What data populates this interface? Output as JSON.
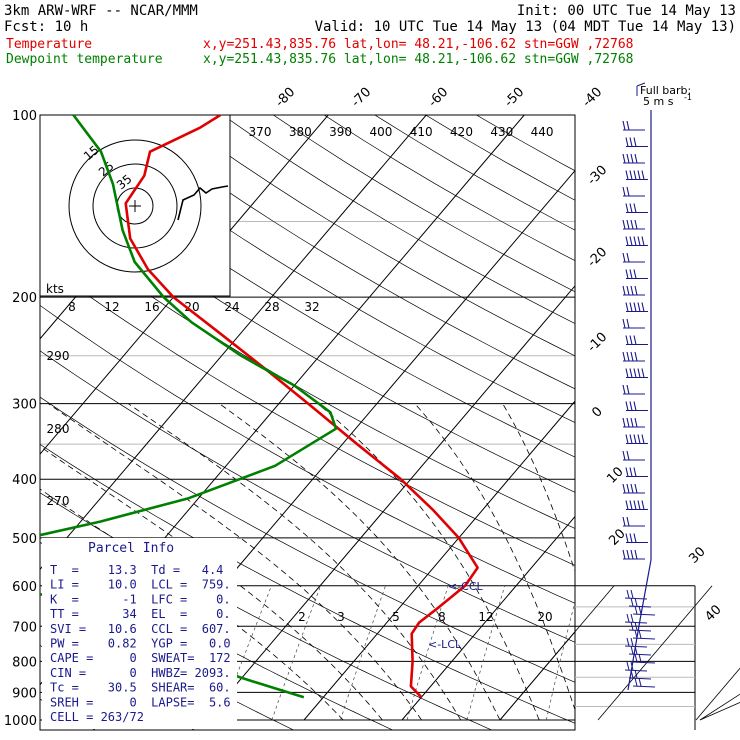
{
  "header": {
    "model": "3km ARW-WRF -- NCAR/MMM",
    "init": "Init: 00 UTC Tue 14 May 13",
    "fcst": "Fcst:    10 h",
    "valid": "Valid: 10 UTC Tue 14 May 13 (04 MDT Tue 14 May 13)",
    "temp_label": "Temperature",
    "dew_label": "Dewpoint temperature",
    "temp_info": "x,y=251.43,835.76   lat,lon= 48.21,-106.62   stn=GGW ,72768",
    "dew_info": "x,y=251.43,835.76   lat,lon= 48.21,-106.62   stn=GGW ,72768"
  },
  "colors": {
    "temperature": "#e00000",
    "dewpoint": "#008000",
    "parcel": "#1a1a8c"
  },
  "wind_key": {
    "title": "Full barb:",
    "value": "5 m s",
    "sup": "-1"
  },
  "hodograph": {
    "ring_labels": [
      "15",
      "25",
      "35"
    ],
    "units": "kts"
  },
  "parcel_info": {
    "title": "Parcel Info",
    "rows": [
      "T  =    13.3  Td =   4.4",
      "LI =    10.0  LCL =  759.",
      "K  =      -1  LFC =    0.",
      "TT =      34  EL  =    0.",
      "SVI =   10.6  CCL =  607.",
      "PW =    0.82  YGP =   0.0",
      "CAPE =     0  SWEAT=  172",
      "CIN =      0  HWBZ= 2093.",
      "Tc =    30.5  SHEAR=  60.",
      "SREH =     0  LAPSE=  5.6",
      "CELL = 263/72"
    ]
  },
  "annotations": {
    "ccl": "<-CCL",
    "lcl": "<-LCL"
  },
  "chart_data": {
    "type": "line",
    "ylabel": "",
    "yscale": "log-pressure",
    "pressure_ticks": [
      100,
      200,
      300,
      400,
      500,
      600,
      700,
      800,
      900,
      1000
    ],
    "isotherm_labels": [
      -80,
      -70,
      -60,
      -50,
      -40,
      -30,
      -20,
      -10,
      0,
      10,
      20,
      30,
      40
    ],
    "theta_labels": [
      370,
      380,
      390,
      400,
      410,
      420,
      430,
      440
    ],
    "wind_scale_labels": [
      8,
      12,
      16,
      20,
      24,
      28,
      32
    ],
    "theta_labels_left": [
      290,
      280,
      270
    ],
    "mixing_ratio_labels": [
      2,
      3,
      5,
      8,
      12,
      20
    ],
    "series": [
      {
        "name": "Temperature",
        "points": [
          [
            917,
            10
          ],
          [
            880,
            8
          ],
          [
            800,
            6
          ],
          [
            720,
            3.5
          ],
          [
            690,
            3.3
          ],
          [
            650,
            4
          ],
          [
            600,
            4.8
          ],
          [
            560,
            4.5
          ],
          [
            500,
            0
          ],
          [
            450,
            -5
          ],
          [
            400,
            -11
          ],
          [
            350,
            -18.5
          ],
          [
            300,
            -27
          ],
          [
            260,
            -35
          ],
          [
            230,
            -42
          ],
          [
            200,
            -50
          ],
          [
            180,
            -55
          ],
          [
            160,
            -59.5
          ],
          [
            140,
            -63
          ],
          [
            126,
            -63.5
          ],
          [
            115,
            -65
          ],
          [
            105,
            -62
          ],
          [
            100,
            -61
          ]
        ]
      },
      {
        "name": "Dewpoint temperature",
        "points": [
          [
            917,
            -2
          ],
          [
            860,
            -9
          ],
          [
            820,
            -14
          ],
          [
            780,
            -17
          ],
          [
            720,
            -24
          ],
          [
            650,
            -33
          ],
          [
            600,
            -41
          ],
          [
            560,
            -47
          ],
          [
            520,
            -48
          ],
          [
            500,
            -44
          ],
          [
            470,
            -38
          ],
          [
            430,
            -31
          ],
          [
            380,
            -25
          ],
          [
            330,
            -22
          ],
          [
            310,
            -24
          ],
          [
            280,
            -30
          ],
          [
            250,
            -38
          ],
          [
            220,
            -46
          ],
          [
            200,
            -51
          ],
          [
            175,
            -57
          ],
          [
            155,
            -61
          ],
          [
            130,
            -66
          ],
          [
            115,
            -70
          ],
          [
            100,
            -76
          ]
        ]
      }
    ]
  }
}
